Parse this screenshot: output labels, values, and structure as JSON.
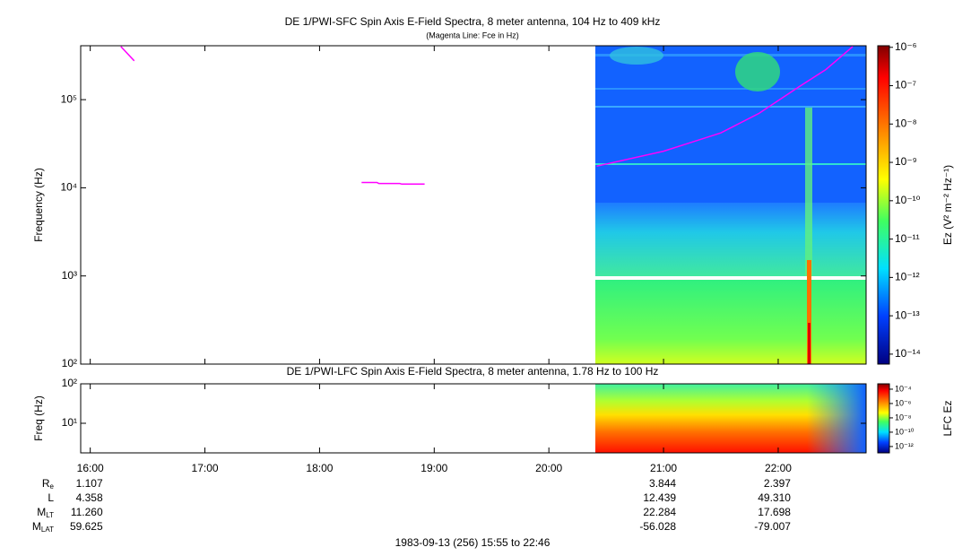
{
  "chart_data": [
    {
      "type": "spectrogram",
      "title": "DE 1/PWI-SFC  Spin Axis E-Field Spectra, 8 meter antenna, 104 Hz to 409 kHz",
      "subtitle": "(Magenta Line: Fce in Hz)",
      "ylabel": "Frequency (Hz)",
      "log_y": true,
      "ylim": [
        100,
        409000
      ],
      "yticks": [
        {
          "value": 100,
          "label": "10²"
        },
        {
          "value": 1000,
          "label": "10³"
        },
        {
          "value": 10000,
          "label": "10⁴"
        },
        {
          "value": 100000,
          "label": "10⁵"
        }
      ],
      "xlim": [
        "15:55",
        "22:46"
      ],
      "xticks": [
        "16:00",
        "17:00",
        "18:00",
        "19:00",
        "20:00",
        "21:00",
        "22:00"
      ],
      "colorbar": {
        "label": "Ez (V² m⁻² Hz⁻¹)",
        "log": true,
        "lim": [
          5.5e-15,
          1.1e-06
        ],
        "ticks": [
          {
            "value": 1e-06,
            "label": "10⁻⁶"
          },
          {
            "value": 1e-07,
            "label": "10⁻⁷"
          },
          {
            "value": 1e-08,
            "label": "10⁻⁸"
          },
          {
            "value": 1e-09,
            "label": "10⁻⁹"
          },
          {
            "value": 1e-10,
            "label": "10⁻¹⁰"
          },
          {
            "value": 1e-11,
            "label": "10⁻¹¹"
          },
          {
            "value": 1e-12,
            "label": "10⁻¹²"
          },
          {
            "value": 1e-13,
            "label": "10⁻¹³"
          },
          {
            "value": 1e-14,
            "label": "10⁻¹⁴"
          }
        ]
      },
      "series": [
        {
          "color": "#ff00ff",
          "x": [
            "16:16",
            "16:23",
            null,
            "18:22",
            "18:30",
            "18:31",
            "18:42",
            "18:43",
            "18:55",
            null,
            "20:25",
            "21:00",
            "21:30",
            "21:50",
            "22:10",
            "22:25",
            "22:39"
          ],
          "values": [
            400000,
            276000,
            null,
            11500,
            11500,
            11200,
            11200,
            11000,
            11000,
            null,
            17600,
            26000,
            42000,
            70000,
            136000,
            220000,
            400000
          ]
        }
      ]
    },
    {
      "type": "spectrogram",
      "title": "DE 1/PWI-LFC  Spin Axis E-Field Spectra, 8 meter antenna, 1.78 Hz to 100 Hz",
      "ylabel": "Freq (Hz)",
      "log_y": true,
      "ylim": [
        1.78,
        100
      ],
      "yticks": [
        {
          "value": 10,
          "label": "10¹"
        },
        {
          "value": 100,
          "label": "10²"
        }
      ],
      "xlim": [
        "15:55",
        "22:46"
      ],
      "xticks": [
        "16:00",
        "17:00",
        "18:00",
        "19:00",
        "20:00",
        "21:00",
        "22:00"
      ],
      "colorbar": {
        "label": "LFC Ez",
        "log": true,
        "lim": [
          1.3e-13,
          0.00056
        ],
        "ticks": [
          {
            "value": 0.0001,
            "label": "10⁻⁴"
          },
          {
            "value": 1e-06,
            "label": "10⁻⁶"
          },
          {
            "value": 1e-08,
            "label": "10⁻⁸"
          },
          {
            "value": 1e-10,
            "label": "10⁻¹⁰"
          },
          {
            "value": 1e-12,
            "label": "10⁻¹²"
          }
        ]
      }
    }
  ],
  "ephemeris": {
    "times": [
      "16:00",
      "21:00",
      "22:00"
    ],
    "rows": [
      {
        "label": "R",
        "sub": "e",
        "values": [
          "1.107",
          "3.844",
          "2.397"
        ]
      },
      {
        "label": "L",
        "values": [
          "4.358",
          "12.439",
          "49.310"
        ]
      },
      {
        "label": "M",
        "sub": "LT",
        "values": [
          "11.260",
          "22.284",
          "17.698"
        ]
      },
      {
        "label": "M",
        "sub": "LAT",
        "values": [
          "59.625",
          "-56.028",
          "-79.007"
        ]
      }
    ]
  },
  "footer": "1983-09-13 (256) 15:55 to 22:46"
}
